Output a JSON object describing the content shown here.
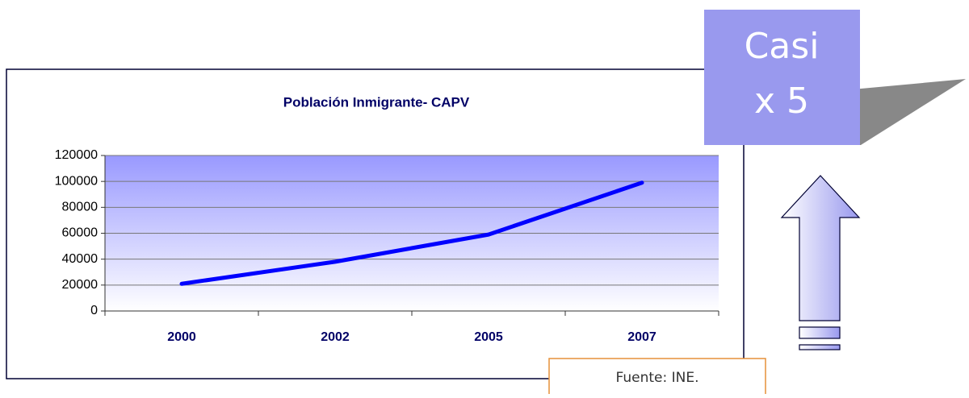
{
  "chart_data": {
    "type": "line",
    "title": "Población Inmigrante- CAPV",
    "categories": [
      "2000",
      "2002",
      "2005",
      "2007"
    ],
    "series": [
      {
        "name": "Población Inmigrante",
        "color": "#0000ff",
        "values": [
          21000,
          38000,
          59000,
          99000
        ]
      }
    ],
    "ylim": [
      0,
      120000
    ],
    "yticks": [
      0,
      20000,
      40000,
      60000,
      80000,
      100000,
      120000
    ],
    "grid": true
  },
  "callout": {
    "lines": [
      "Casi",
      "x 5"
    ]
  },
  "source": "Fuente: INE."
}
